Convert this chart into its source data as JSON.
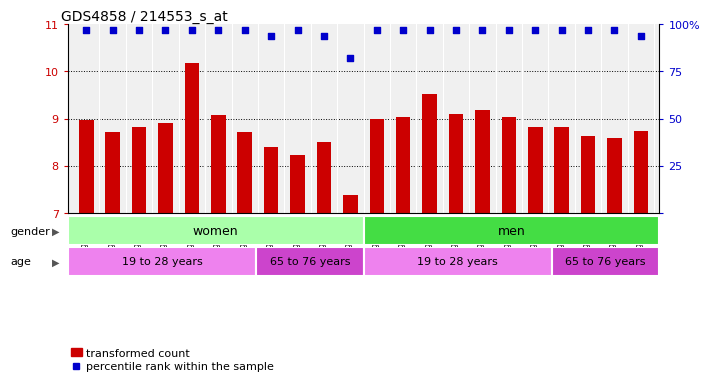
{
  "title": "GDS4858 / 214553_s_at",
  "samples": [
    "GSM948623",
    "GSM948624",
    "GSM948625",
    "GSM948626",
    "GSM948627",
    "GSM948628",
    "GSM948629",
    "GSM948637",
    "GSM948638",
    "GSM948639",
    "GSM948640",
    "GSM948630",
    "GSM948631",
    "GSM948632",
    "GSM948633",
    "GSM948634",
    "GSM948635",
    "GSM948636",
    "GSM948641",
    "GSM948642",
    "GSM948643",
    "GSM948644"
  ],
  "bar_values": [
    8.97,
    8.72,
    8.82,
    8.9,
    10.18,
    9.08,
    8.72,
    8.4,
    8.23,
    8.5,
    7.37,
    8.98,
    9.03,
    9.53,
    9.1,
    9.19,
    9.04,
    8.83,
    8.82,
    8.63,
    8.58,
    8.73
  ],
  "percentile_values": [
    97,
    97,
    97,
    97,
    97,
    97,
    97,
    94,
    97,
    94,
    82,
    97,
    97,
    97,
    97,
    97,
    97,
    97,
    97,
    97,
    97,
    94
  ],
  "bar_color": "#cc0000",
  "dot_color": "#0000cc",
  "ylim_left": [
    7,
    11
  ],
  "ylim_right": [
    0,
    100
  ],
  "yticks_left": [
    7,
    8,
    9,
    10,
    11
  ],
  "yticks_right": [
    0,
    25,
    50,
    75,
    100
  ],
  "gender_groups": [
    {
      "label": "women",
      "start": 0,
      "end": 11,
      "color": "#aaffaa"
    },
    {
      "label": "men",
      "start": 11,
      "end": 22,
      "color": "#44dd44"
    }
  ],
  "age_groups": [
    {
      "label": "19 to 28 years",
      "start": 0,
      "end": 7,
      "color": "#ee82ee"
    },
    {
      "label": "65 to 76 years",
      "start": 7,
      "end": 11,
      "color": "#cc44cc"
    },
    {
      "label": "19 to 28 years",
      "start": 11,
      "end": 18,
      "color": "#ee82ee"
    },
    {
      "label": "65 to 76 years",
      "start": 18,
      "end": 22,
      "color": "#cc44cc"
    }
  ],
  "legend_bar_label": "transformed count",
  "legend_dot_label": "percentile rank within the sample",
  "background_color": "#ffffff",
  "bar_width": 0.55
}
